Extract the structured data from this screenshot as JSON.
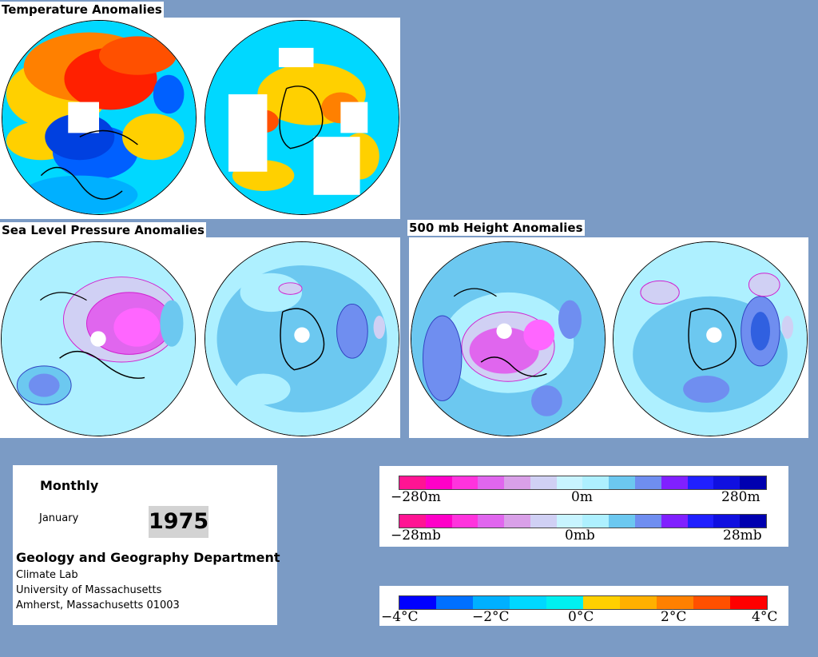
{
  "titles": {
    "temperature": "Temperature Anomalies",
    "slp": "Sea Level Pressure Anomalies",
    "height500": "500 mb Height Anomalies"
  },
  "info": {
    "period": "Monthly",
    "month": "January",
    "year": "1975",
    "department": "Geology and Geography Department",
    "lab": "Climate Lab",
    "university": "University of Massachusetts",
    "address": "Amherst, Massachusetts 01003"
  },
  "legend_height": {
    "labels": [
      "−280m",
      "0m",
      "280m"
    ],
    "colors": [
      "#ff1493",
      "#ff00c8",
      "#ff33dd",
      "#e066ee",
      "#d9a0e8",
      "#d0d0f4",
      "#c8f4ff",
      "#aef0ff",
      "#6cc8f0",
      "#6f8ef0",
      "#8020ff",
      "#2020ff",
      "#1010e0",
      "#0000b0"
    ]
  },
  "legend_pressure": {
    "labels": [
      "−28mb",
      "0mb",
      "28mb"
    ],
    "colors": [
      "#ff1493",
      "#ff00c8",
      "#ff33dd",
      "#e066ee",
      "#d9a0e8",
      "#d0d0f4",
      "#c8f4ff",
      "#aef0ff",
      "#6cc8f0",
      "#6f8ef0",
      "#8020ff",
      "#2020ff",
      "#1010e0",
      "#0000b0"
    ]
  },
  "legend_temperature": {
    "labels": [
      "−4°C",
      "−2°C",
      "0°C",
      "2°C",
      "4°C"
    ],
    "colors": [
      "#0000ff",
      "#0070ff",
      "#00b0ff",
      "#00d8ff",
      "#00f0f0",
      "#ffd000",
      "#ffb000",
      "#ff8000",
      "#ff5000",
      "#ff0000"
    ]
  },
  "palette": {
    "background": "#7b9bc5",
    "temp_warm": "#ff3000",
    "temp_cool": "#0030e0",
    "anom_positive": "#e060e0",
    "anom_negative": "#5070e0"
  }
}
